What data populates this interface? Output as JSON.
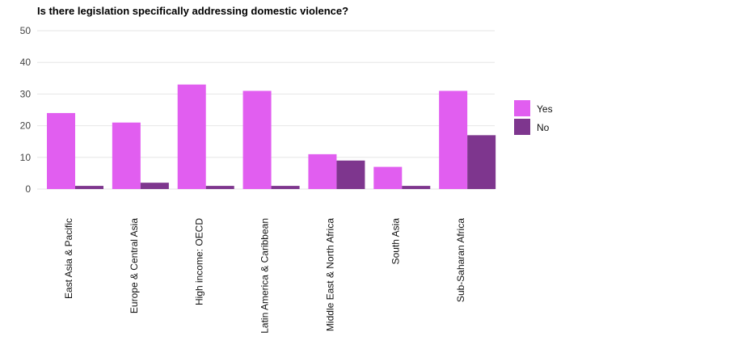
{
  "chart_data": {
    "type": "bar",
    "title": "Is there legislation specifically addressing domestic violence?",
    "xlabel": "",
    "ylabel": "",
    "ylim": [
      0,
      50
    ],
    "yticks": [
      0,
      10,
      20,
      30,
      40,
      50
    ],
    "grid": true,
    "legend_position": "right",
    "categories": [
      "East Asia & Pacific",
      "Europe & Central Asia",
      "High income: OECD",
      "Latin America & Caribbean",
      "Middle East & North Africa",
      "South Asia",
      "Sub-Saharan Africa"
    ],
    "series": [
      {
        "name": "Yes",
        "color": "#e15ef0",
        "values": [
          24,
          21,
          33,
          31,
          11,
          7,
          31
        ]
      },
      {
        "name": "No",
        "color": "#7e368e",
        "values": [
          1,
          2,
          1,
          1,
          9,
          1,
          17
        ]
      }
    ]
  }
}
